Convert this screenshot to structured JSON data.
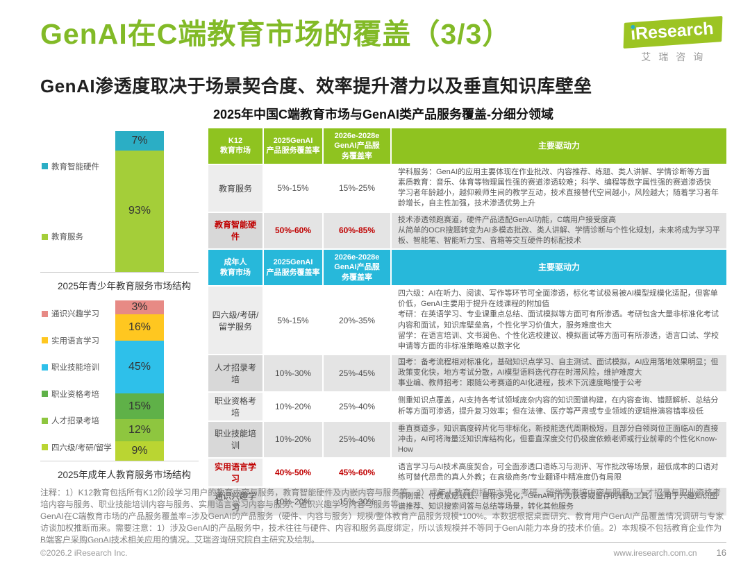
{
  "page": {
    "title": "GenAI在C端教育市场的覆盖（3/3）",
    "subtitle": "GenAI渗透度取决于场景契合度、效率提升潜力以及垂直知识库壁垒",
    "section_title": "2025年中国C端教育市场与GenAI类产品服务覆盖-分细分领域"
  },
  "logo": {
    "brand": "iResearch",
    "cn": "艾瑞咨询",
    "dot_color": "#2baec5",
    "bg_color": "#9cc423"
  },
  "chart_data": [
    {
      "type": "bar",
      "stacked": true,
      "unit": "%",
      "title": "2025年青少年教育服务市场结构",
      "segments": [
        {
          "label": "教育智能硬件",
          "value": 7,
          "color": "#2baec5"
        },
        {
          "label": "教育服务",
          "value": 93,
          "color": "#a4ce39"
        }
      ]
    },
    {
      "type": "bar",
      "stacked": true,
      "unit": "%",
      "title": "2025年成年人教育服务市场结构",
      "segments": [
        {
          "label": "通识兴趣学习",
          "value": 3,
          "color": "#e78a85"
        },
        {
          "label": "实用语言学习",
          "value": 16,
          "color": "#ffc720"
        },
        {
          "label": "职业技能培训",
          "value": 45,
          "color": "#2ec0ea"
        },
        {
          "label": "职业资格考培",
          "value": 15,
          "color": "#5fb148"
        },
        {
          "label": "人才招录考培",
          "value": 12,
          "color": "#8ec63f"
        },
        {
          "label": "四六级/考研/留学",
          "value": 9,
          "color": "#bad532"
        }
      ]
    }
  ],
  "table": {
    "sections": [
      {
        "theme": "green",
        "header": {
          "market": "K12\n教育市场",
          "cov2025": "2025GenAI\n产品服务覆盖率",
          "cov2026": "2026e-2028e\nGenAI产品服\n务覆盖率",
          "drivers": "主要驱动力"
        },
        "rows": [
          {
            "market": "教育服务",
            "highlight": false,
            "shade": false,
            "cov2025": "5%-15%",
            "cov2026": "15%-25%",
            "drivers": [
              "学科服务：GenAI的应用主要体现在作业批改、内容推荐、练题、类人讲解、学情诊断等方面",
              "素质教育：音乐、体育等物理属性强的赛道渗透较难；科学、编程等数字属性强的赛道渗透快",
              "学习者年龄越小，越仰赖师生间的教学互动，技术直接替代空间越小，风险越大；随着学习者年龄增长，自主性加强，技术渗透优势上升"
            ]
          },
          {
            "market": "教育智能硬件",
            "highlight": true,
            "shade": true,
            "cov2025": "50%-60%",
            "cov2026": "60%-85%",
            "drivers": [
              "技术渗透领跑赛道，硬件产品适配GenAI功能，C端用户接受度高",
              "从简单的OCR搜题转变为AI多模态批改、类人讲解、学情诊断与个性化规划，未来将成为学习平板、智能笔、智能听力宝、音箱等交互硬件的标配技术"
            ]
          }
        ]
      },
      {
        "theme": "cyan",
        "header": {
          "market": "成年人\n教育市场",
          "cov2025": "2025GenAI\n产品服务覆盖率",
          "cov2026": "2026e-2028e\nGenAI产品服\n务覆盖率",
          "drivers": "主要驱动力"
        },
        "rows": [
          {
            "market": "四六级/考研/留学服务",
            "highlight": false,
            "shade": false,
            "cov2025": "5%-15%",
            "cov2026": "20%-35%",
            "drivers": [
              "四六级：AI在听力、阅读、写作等环节可全面渗透，标化考试极易被AI模型规模化适配，但客单价低，GenAI主要用于提升在线课程的附加值",
              "考研：在英语学习、专业课重点总结、面试模拟等方面可有所渗透。考研包含大量非标准化考试内容和面试，知识库壁垒高，个性化学习价值大，服务难度也大",
              "留学：在语言培训、文书润色、个性化选校建议、模拟面试等方面可有所渗透，语言口试、学校申请等方面的非标准策略难以数字化"
            ]
          },
          {
            "market": "人才招录考培",
            "highlight": false,
            "shade": true,
            "cov2025": "10%-30%",
            "cov2026": "25%-45%",
            "drivers": [
              "国考：备考流程相对标准化，基础知识点学习、自主测试、面试模拟，AI应用落地效果明显；但政策变化快，地方考试分散，AI模型语料迭代存在时滞风险，维护难度大",
              "事业编、教师招考：跟随公考赛道的AI化进程，技术下沉速度略慢于公考"
            ]
          },
          {
            "market": "职业资格考培",
            "highlight": false,
            "shade": false,
            "cov2025": "10%-20%",
            "cov2026": "25%-40%",
            "drivers": [
              "侧重知识点覆盖，AI支持各考试领域庞杂内容的知识图谱构建，在内容查询、错题解析、总结分析等方面可渗透，提升复习效率；但在法律、医疗等严肃或专业领域的逻辑推演容错率极低"
            ]
          },
          {
            "market": "职业技能培训",
            "highlight": false,
            "shade": true,
            "cov2025": "10%-20%",
            "cov2026": "25%-40%",
            "drivers": [
              "垂直赛道多，知识高度碎片化与非标化，新技能迭代周期极短，且部分白领岗位正面临AI的直接冲击，AI可将海量泛知识库结构化，但垂直深度交付仍极度依赖老师或行业前辈的个性化Know-How"
            ]
          },
          {
            "market": "实用语言学习",
            "highlight": true,
            "shade": false,
            "cov2025": "40%-50%",
            "cov2026": "45%-60%",
            "drivers": [
              "语言学习与AI技术高度契合，可全面渗透口语练习与测评、写作批改等场景，超低成本的口语对练可替代昂贵的真人外教；在高级商务/专业翻译中精准度仍有局限"
            ]
          },
          {
            "market": "通识兴趣学习",
            "highlight": false,
            "shade": true,
            "cov2025": "10%-20%",
            "cov2026": "15%-30%",
            "drivers": [
              "非刚需、付费意愿较低、目标多元化，GenAI可作为获客或留存的辅助工具，应用于兴趣知识图谱推荐、知识搜索问答与总结等场景，转化其他服务"
            ]
          }
        ]
      }
    ]
  },
  "notes": {
    "text": "注释：1）K12教育包括所有K12阶段学习用户的教育内容与服务，教育智能硬件及内嵌内容与服务等。2）成年人教育包括四六级、考研、留学等考培内容与服务，人才招录与职业资格考培内容与服务、职业技能培训内容与服务、实用语言学习内容与服务、通识兴趣学习内容与服务等。\nGenAI在C端教育市场的产品服务覆盖率=涉及GenAI的产品服务（硬件、内容与服务）规模/整体教育产品服务规模*100%。本数据根据桌面研究、教育用户GenAI产品覆盖情况调研与专家访谈加权推断而来。需要注意：1）涉及GenAI的产品服务中，技术往往与硬件、内容和服务高度绑定，所以该规模并不等同于GenAI能力本身的技术价值。2）本规模不包括教育企业作为B端客户采购GenAI技术相关应用的情况。艾瑞咨询研究院自主研究及绘制。"
  },
  "footer": {
    "copyright": "©2026.2 iResearch Inc.",
    "url": "www.iresearch.com.cn",
    "page": "16"
  }
}
